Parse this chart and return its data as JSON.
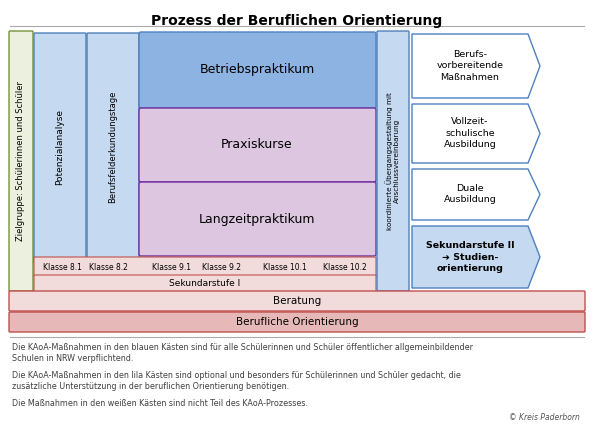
{
  "title": "Prozess der Beruflichen Orientierung",
  "bg_color": "#ffffff",
  "fig_width": 5.94,
  "fig_height": 4.45,
  "dpi": 100,
  "colors": {
    "blue_light": "#c5d9f1",
    "blue_medium": "#8db3e2",
    "purple_light": "#dcc6e0",
    "green_light": "#ebf1de",
    "red_light": "#f2dcdb",
    "red_medium": "#e6b8b7",
    "white": "#ffffff",
    "border_blue": "#4f81bd",
    "border_purple": "#7030a0",
    "border_green": "#76923c",
    "border_red": "#c0504d",
    "gray_line": "#aaaaaa",
    "text_dark": "#333333",
    "text_footnote": "#404040"
  },
  "title_fontsize": 10,
  "footnote_fontsize": 5.8,
  "footnotes": [
    "Die KAoA-Maßnahmen in den blauen Kästen sind für alle Schülerinnen und Schüler öffentlicher allgemeinbildender\nSchulen in NRW verpflichtend.",
    "Die KAoA-Maßnahmen in den lila Kästen sind optional und besonders für Schülerinnen und Schüler gedacht, die\nzusätzliche Unterstützung in der beruflichen Orientierung benötigen.",
    "Die Maßnahmen in den weißen Kästen sind nicht Teil des KAoA-Prozesses."
  ],
  "copyright": "© Kreis Paderborn"
}
